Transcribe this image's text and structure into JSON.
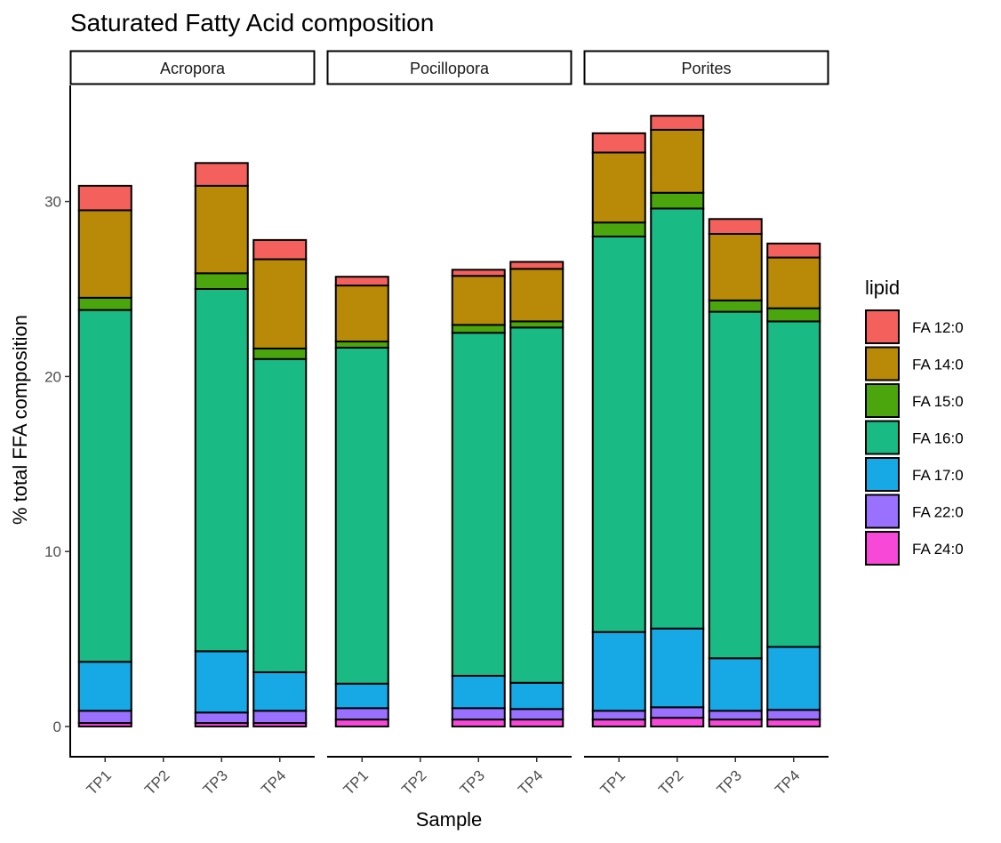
{
  "chart_data": {
    "type": "bar",
    "stacked": true,
    "title": "Saturated Fatty Acid composition",
    "xlabel": "Sample",
    "ylabel": "% total FFA composition",
    "ylim": [
      0,
      35
    ],
    "yticks": [
      0,
      10,
      20,
      30
    ],
    "categories": [
      "TP1",
      "TP2",
      "TP3",
      "TP4"
    ],
    "legend": {
      "title": "lipid",
      "position": "right"
    },
    "series": [
      {
        "name": "FA 24:0",
        "color": "#F748D7"
      },
      {
        "name": "FA 22:0",
        "color": "#9A70FF"
      },
      {
        "name": "FA 17:0",
        "color": "#17A8E6"
      },
      {
        "name": "FA 16:0",
        "color": "#1ABA84"
      },
      {
        "name": "FA 15:0",
        "color": "#4BA60E"
      },
      {
        "name": "FA 14:0",
        "color": "#B88A07"
      },
      {
        "name": "FA 12:0",
        "color": "#F4615C"
      }
    ],
    "facets": [
      {
        "name": "Acropora",
        "values": {
          "TP1": [
            0.2,
            0.7,
            2.8,
            20.1,
            0.7,
            5.0,
            1.4
          ],
          "TP2": null,
          "TP3": [
            0.2,
            0.6,
            3.5,
            20.7,
            0.9,
            5.0,
            1.3
          ],
          "TP4": [
            0.2,
            0.7,
            2.2,
            17.9,
            0.6,
            5.1,
            1.1
          ]
        }
      },
      {
        "name": "Pocillopora",
        "values": {
          "TP1": [
            0.4,
            0.65,
            1.4,
            19.2,
            0.35,
            3.2,
            0.5
          ],
          "TP2": null,
          "TP3": [
            0.4,
            0.65,
            1.85,
            19.6,
            0.45,
            2.8,
            0.35
          ],
          "TP4": [
            0.4,
            0.6,
            1.5,
            20.3,
            0.35,
            3.0,
            0.4
          ]
        }
      },
      {
        "name": "Porites",
        "values": {
          "TP1": [
            0.4,
            0.5,
            4.5,
            22.6,
            0.8,
            4.0,
            1.1
          ],
          "TP2": [
            0.5,
            0.6,
            4.5,
            24.0,
            0.9,
            3.6,
            0.8
          ],
          "TP3": [
            0.4,
            0.5,
            3.0,
            19.8,
            0.65,
            3.8,
            0.85
          ],
          "TP4": [
            0.4,
            0.55,
            3.6,
            18.6,
            0.75,
            2.9,
            0.8
          ]
        }
      }
    ]
  }
}
